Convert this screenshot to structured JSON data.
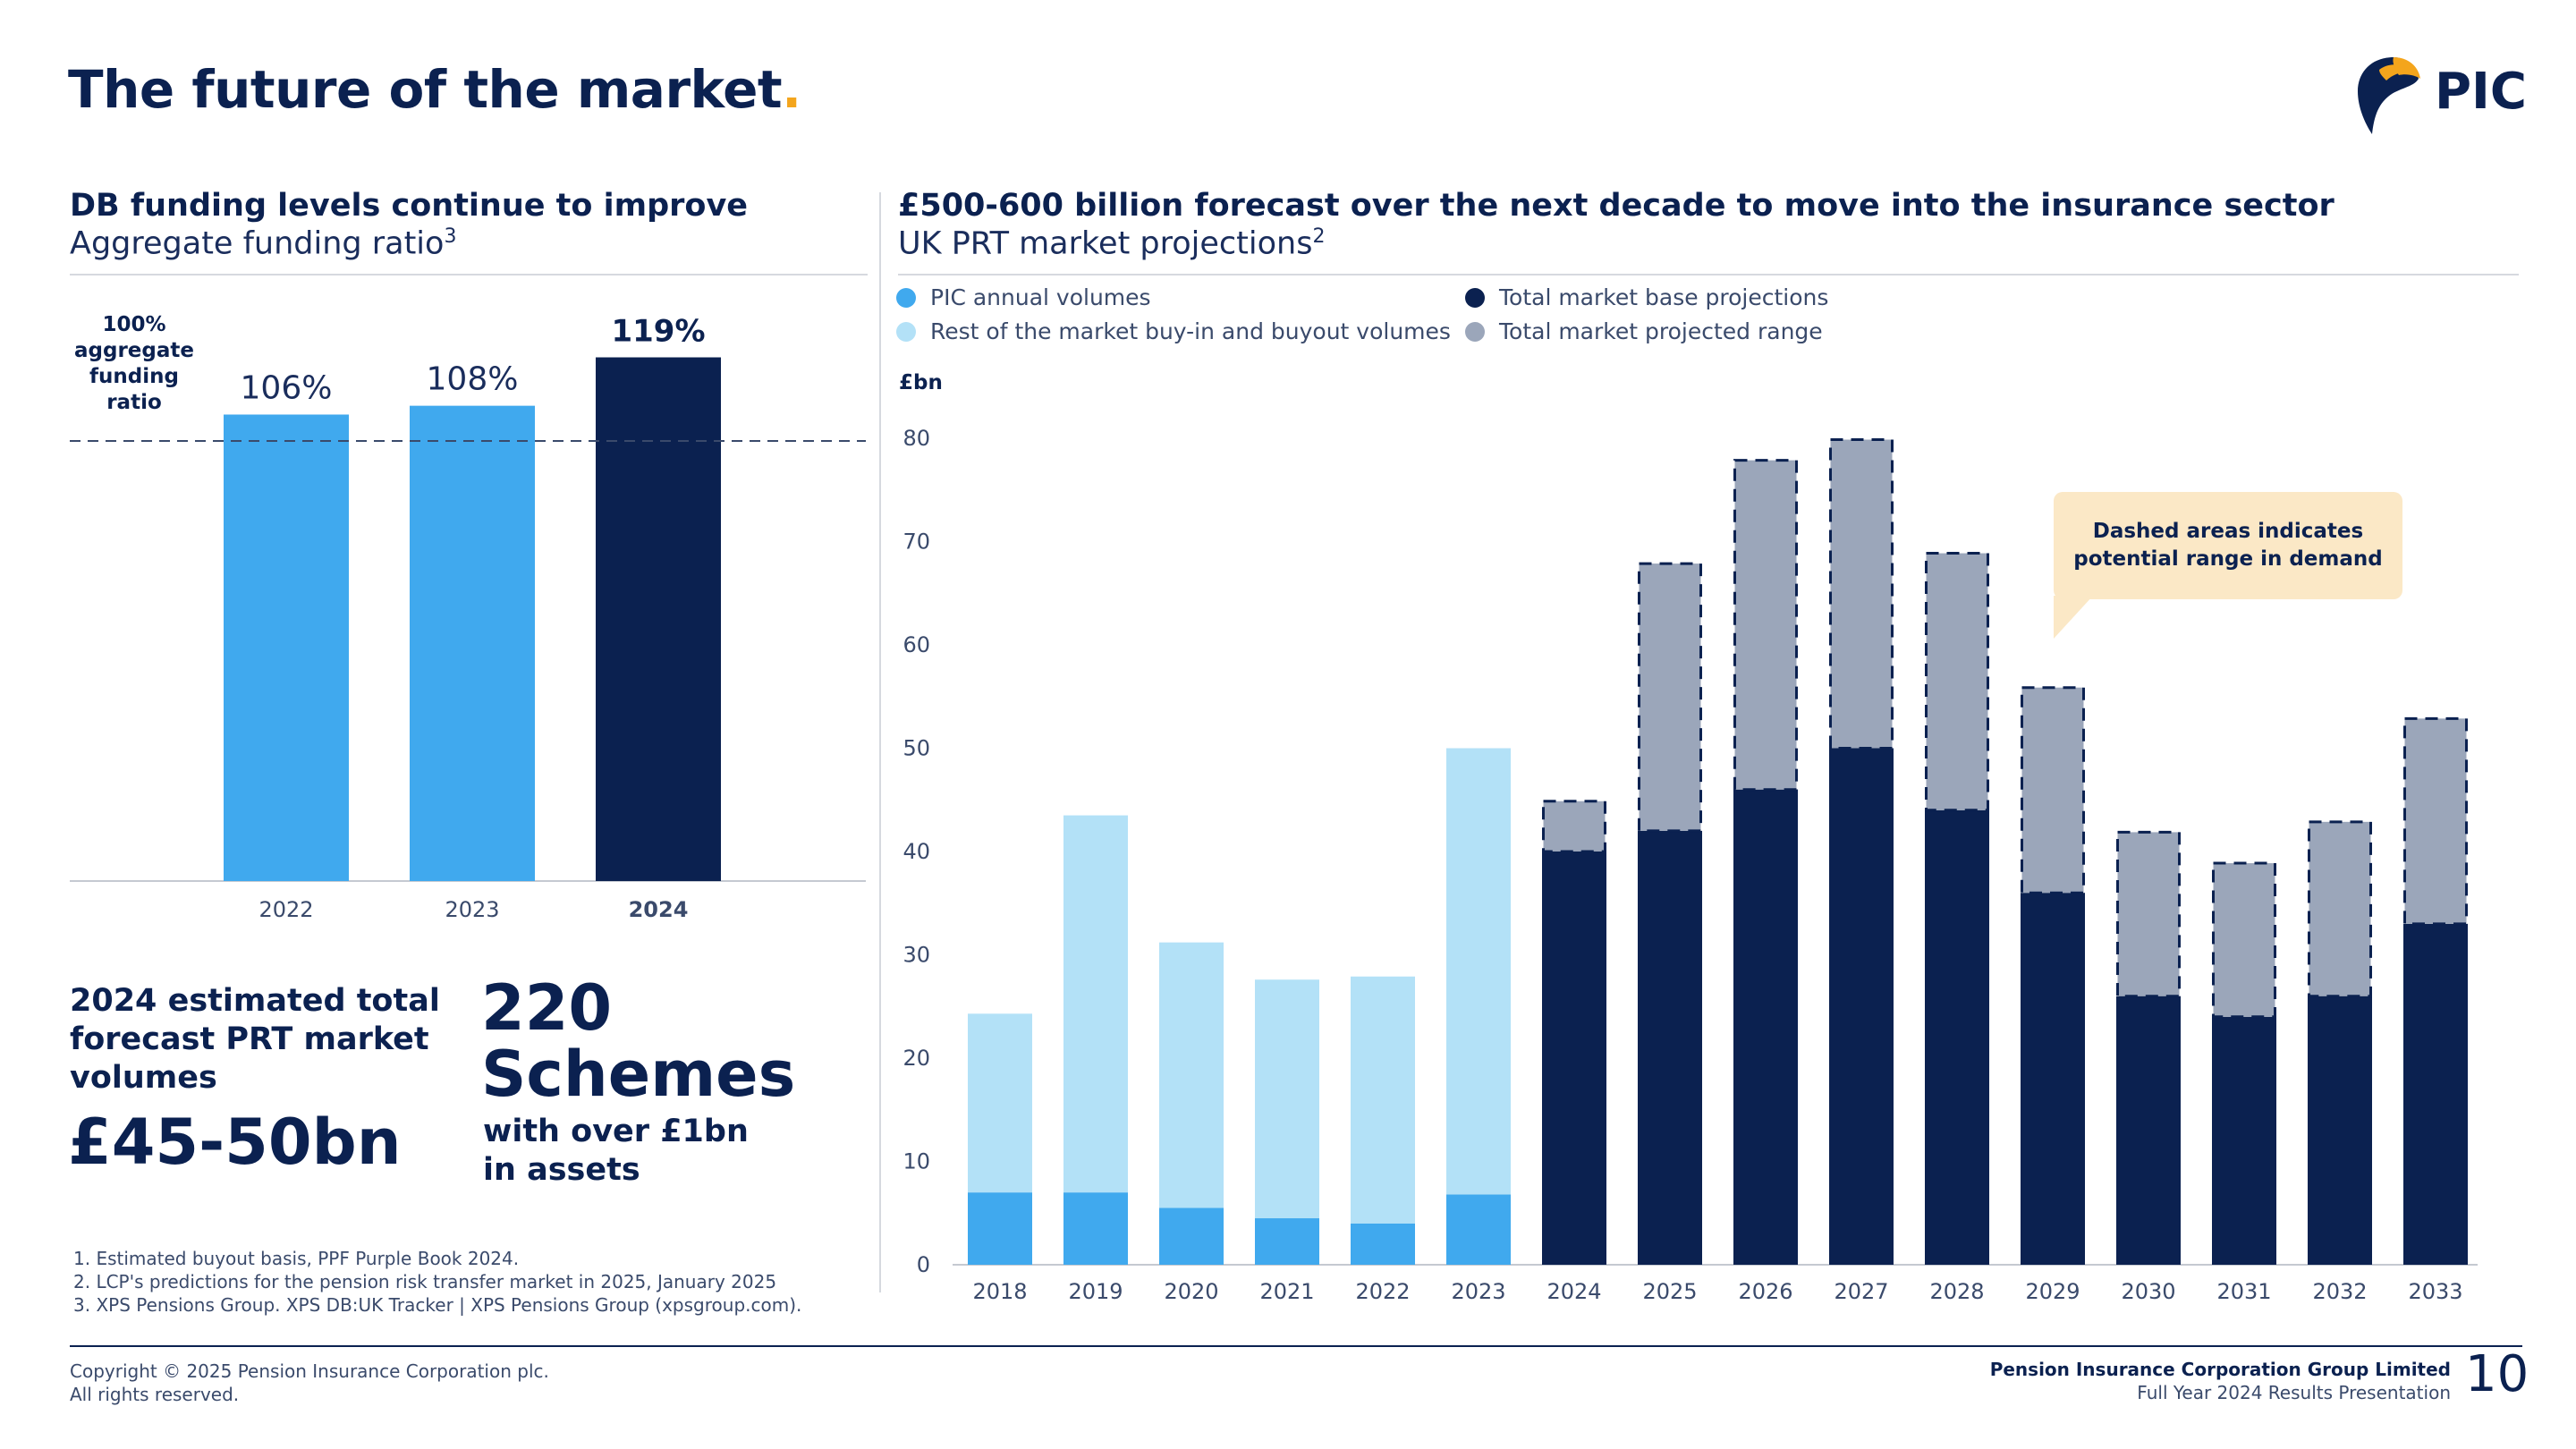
{
  "page": {
    "title": "The future of the market",
    "title_dot": ".",
    "brand": "PIC",
    "page_number": "10"
  },
  "left_panel": {
    "heading": "DB funding levels continue to improve",
    "subheading": "Aggregate funding ratio",
    "subheading_sup": "3",
    "reference_label": "100% aggregate funding ratio",
    "stat_label": "2024 estimated total forecast PRT market volumes",
    "stat_value": "£45-50bn",
    "schemes_value": "220 Schemes",
    "schemes_label": "with over £1bn in assets"
  },
  "right_panel": {
    "heading": "£500-600 billion forecast over the next decade to move into the insurance sector",
    "subheading": "UK PRT market projections",
    "subheading_sup": "2",
    "callout": "Dashed areas indicates potential range in demand",
    "legend": [
      {
        "label": "PIC annual volumes",
        "color": "#40a9ee"
      },
      {
        "label": "Rest of the market buy-in and buyout volumes",
        "color": "#b3e1f7"
      },
      {
        "label": "Total market base projections",
        "color": "#0b2150"
      },
      {
        "label": "Total market projected range",
        "color": "#9ba6ba"
      }
    ]
  },
  "footnotes": [
    "1.  Estimated buyout basis, PPF Purple Book 2024.",
    "2.  LCP's predictions for the pension risk transfer market in 2025, January 2025",
    "3.  XPS Pensions Group. XPS DB:UK Tracker | XPS Pensions Group (xpsgroup.com)."
  ],
  "footer": {
    "copyright": "Copyright © 2025 Pension Insurance Corporation plc.",
    "rights": "All rights reserved.",
    "company": "Pension Insurance Corporation Group Limited",
    "presentation": "Full Year 2024 Results Presentation"
  },
  "colors": {
    "navy": "#0b2150",
    "pic_blue": "#40a9ee",
    "light_blue": "#b3e1f7",
    "range_grey": "#9ba6ba",
    "accent_yellow": "#f4a51c"
  },
  "chart_data": [
    {
      "type": "bar",
      "categories": [
        "2022",
        "2023",
        "2024"
      ],
      "values": [
        106,
        108,
        119
      ],
      "value_labels": [
        "106%",
        "108%",
        "119%"
      ],
      "highlight": "2024",
      "reference_line": 100,
      "ylim": [
        0,
        125
      ],
      "colors": [
        "#40a9ee",
        "#40a9ee",
        "#0b2150"
      ]
    },
    {
      "type": "bar",
      "stacked": true,
      "ylabel": "£bn",
      "ylim": [
        0,
        80
      ],
      "yticks": [
        0,
        10,
        20,
        30,
        40,
        50,
        60,
        70,
        80
      ],
      "categories": [
        "2018",
        "2019",
        "2020",
        "2021",
        "2022",
        "2023",
        "2024",
        "2025",
        "2026",
        "2027",
        "2028",
        "2029",
        "2030",
        "2031",
        "2032",
        "2033"
      ],
      "series": [
        {
          "name": "PIC annual volumes",
          "values": [
            7,
            7,
            5.5,
            4.5,
            4,
            6.8,
            null,
            null,
            null,
            null,
            null,
            null,
            null,
            null,
            null,
            null
          ]
        },
        {
          "name": "Rest of the market buy-in and buyout volumes",
          "values": [
            17.3,
            36.5,
            25.7,
            23.1,
            23.9,
            43.2,
            null,
            null,
            null,
            null,
            null,
            null,
            null,
            null,
            null,
            null
          ]
        },
        {
          "name": "Total market base projections",
          "values": [
            null,
            null,
            null,
            null,
            null,
            null,
            40,
            42,
            46,
            50,
            44,
            36,
            26,
            24,
            26,
            33
          ]
        },
        {
          "name": "Total market projected range",
          "values": [
            null,
            null,
            null,
            null,
            null,
            null,
            5,
            26,
            32,
            30,
            25,
            20,
            16,
            15,
            17,
            20
          ]
        }
      ]
    }
  ]
}
